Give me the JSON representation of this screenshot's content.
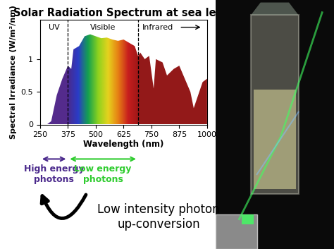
{
  "chart_data": {
    "type": "area",
    "title": "Solar Radiation Spectrum at sea level",
    "x_label": "Wavelength (nm)",
    "y_label": "Spectral Irradiance (W/m²/nm)",
    "x": [
      250,
      280,
      300,
      325,
      350,
      375,
      390,
      400,
      425,
      450,
      475,
      500,
      525,
      550,
      575,
      600,
      625,
      650,
      675,
      690,
      700,
      720,
      740,
      760,
      770,
      800,
      820,
      850,
      875,
      900,
      925,
      940,
      960,
      980,
      1000
    ],
    "values": [
      0,
      0,
      0.05,
      0.45,
      0.7,
      0.9,
      0.85,
      1.15,
      1.2,
      1.35,
      1.38,
      1.35,
      1.32,
      1.33,
      1.3,
      1.28,
      1.3,
      1.25,
      1.2,
      1.05,
      1.1,
      1.0,
      1.05,
      0.55,
      1.0,
      0.95,
      0.75,
      0.85,
      0.9,
      0.7,
      0.5,
      0.25,
      0.45,
      0.65,
      0.7
    ],
    "xlim": [
      250,
      1000
    ],
    "xticks": [
      250,
      375,
      500,
      625,
      750,
      875,
      1000
    ],
    "ylim": [
      0,
      1.6
    ],
    "yticks": [
      0,
      0.5,
      1
    ],
    "region_boundaries": [
      375,
      690
    ],
    "regions": [
      "UV",
      "Visible",
      "Infrared"
    ],
    "annotations": {
      "high_energy": "High energy photons",
      "low_energy": "Low energy photons",
      "conversion": "Low intensity photon up-conversion"
    }
  }
}
